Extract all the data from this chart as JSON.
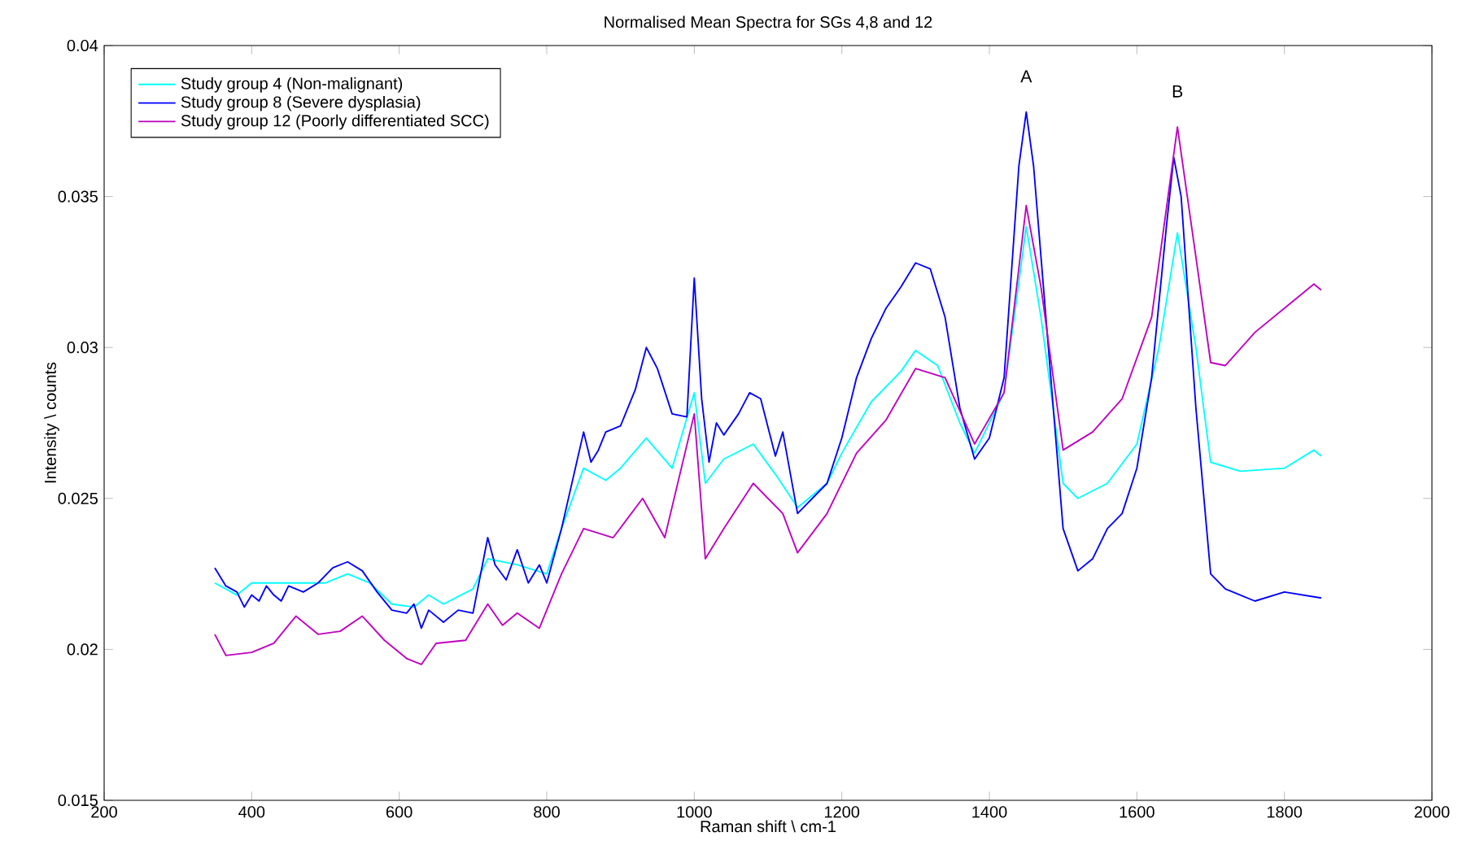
{
  "chart_data": {
    "type": "line",
    "title": "Normalised Mean Spectra for SGs 4,8 and 12",
    "xlabel": "Raman shift \\ cm-1",
    "ylabel": "Intensity \\ counts",
    "xlim": [
      200,
      2000
    ],
    "ylim": [
      0.015,
      0.04
    ],
    "xticks": [
      200,
      400,
      600,
      800,
      1000,
      1200,
      1400,
      1600,
      1800,
      2000
    ],
    "yticks": [
      0.015,
      0.02,
      0.025,
      0.03,
      0.035,
      0.04
    ],
    "legend": "top left",
    "annotations": [
      "A",
      "B"
    ],
    "series": [
      {
        "name": "Study group 4 (Non-malignant)",
        "color": "#00ffff",
        "x": [
          350,
          380,
          400,
          450,
          500,
          530,
          560,
          590,
          620,
          640,
          660,
          700,
          720,
          760,
          800,
          820,
          850,
          880,
          900,
          935,
          970,
          1000,
          1015,
          1040,
          1080,
          1110,
          1140,
          1180,
          1200,
          1240,
          1280,
          1300,
          1330,
          1360,
          1380,
          1420,
          1450,
          1470,
          1500,
          1520,
          1560,
          1600,
          1630,
          1655,
          1680,
          1700,
          1740,
          1800,
          1840,
          1850
        ],
        "values": [
          0.0222,
          0.0218,
          0.0222,
          0.0222,
          0.0222,
          0.0225,
          0.0222,
          0.0215,
          0.0214,
          0.0218,
          0.0215,
          0.022,
          0.023,
          0.0228,
          0.0225,
          0.024,
          0.026,
          0.0256,
          0.026,
          0.027,
          0.026,
          0.0285,
          0.0255,
          0.0263,
          0.0268,
          0.0258,
          0.0247,
          0.0255,
          0.0265,
          0.0282,
          0.0292,
          0.0299,
          0.0294,
          0.0275,
          0.0265,
          0.0285,
          0.034,
          0.031,
          0.0255,
          0.025,
          0.0255,
          0.0268,
          0.03,
          0.0338,
          0.03,
          0.0262,
          0.0259,
          0.026,
          0.0266,
          0.0264
        ]
      },
      {
        "name": "Study group 8 (Severe dysplasia)",
        "color": "#0000ff",
        "x": [
          350,
          365,
          380,
          390,
          400,
          410,
          420,
          430,
          440,
          450,
          470,
          490,
          510,
          530,
          550,
          570,
          590,
          610,
          620,
          630,
          640,
          660,
          680,
          700,
          720,
          730,
          745,
          760,
          775,
          790,
          800,
          820,
          850,
          860,
          870,
          880,
          900,
          920,
          935,
          950,
          970,
          990,
          1000,
          1010,
          1020,
          1030,
          1040,
          1060,
          1075,
          1090,
          1110,
          1120,
          1140,
          1160,
          1180,
          1200,
          1220,
          1240,
          1260,
          1280,
          1300,
          1320,
          1340,
          1360,
          1380,
          1400,
          1420,
          1440,
          1450,
          1460,
          1480,
          1500,
          1520,
          1540,
          1560,
          1580,
          1600,
          1620,
          1640,
          1650,
          1660,
          1680,
          1700,
          1720,
          1760,
          1800,
          1850
        ],
        "values": [
          0.0227,
          0.0221,
          0.0219,
          0.0214,
          0.0218,
          0.0216,
          0.0221,
          0.0218,
          0.0216,
          0.0221,
          0.0219,
          0.0222,
          0.0227,
          0.0229,
          0.0226,
          0.0219,
          0.0213,
          0.0212,
          0.0215,
          0.0207,
          0.0213,
          0.0209,
          0.0213,
          0.0212,
          0.0237,
          0.0228,
          0.0223,
          0.0233,
          0.0222,
          0.0228,
          0.0222,
          0.024,
          0.0272,
          0.0262,
          0.0266,
          0.0272,
          0.0274,
          0.0286,
          0.03,
          0.0293,
          0.0278,
          0.0277,
          0.0323,
          0.0283,
          0.0262,
          0.0275,
          0.0271,
          0.0278,
          0.0285,
          0.0283,
          0.0264,
          0.0272,
          0.0245,
          0.025,
          0.0255,
          0.027,
          0.029,
          0.0303,
          0.0313,
          0.032,
          0.0328,
          0.0326,
          0.031,
          0.028,
          0.0263,
          0.027,
          0.029,
          0.036,
          0.0378,
          0.036,
          0.03,
          0.024,
          0.0226,
          0.023,
          0.024,
          0.0245,
          0.026,
          0.029,
          0.034,
          0.0363,
          0.035,
          0.028,
          0.0225,
          0.022,
          0.0216,
          0.0219,
          0.0217
        ]
      },
      {
        "name": "Study group 12 (Poorly differentiated SCC)",
        "color": "#bf00bf",
        "x": [
          350,
          365,
          400,
          430,
          460,
          490,
          520,
          550,
          580,
          610,
          630,
          650,
          690,
          720,
          740,
          760,
          790,
          820,
          850,
          890,
          930,
          960,
          1000,
          1015,
          1040,
          1080,
          1120,
          1140,
          1180,
          1220,
          1260,
          1300,
          1340,
          1380,
          1420,
          1450,
          1470,
          1500,
          1540,
          1580,
          1620,
          1655,
          1680,
          1700,
          1720,
          1760,
          1800,
          1840,
          1850
        ],
        "values": [
          0.0205,
          0.0198,
          0.0199,
          0.0202,
          0.0211,
          0.0205,
          0.0206,
          0.0211,
          0.0203,
          0.0197,
          0.0195,
          0.0202,
          0.0203,
          0.0215,
          0.0208,
          0.0212,
          0.0207,
          0.0225,
          0.024,
          0.0237,
          0.025,
          0.0237,
          0.0278,
          0.023,
          0.024,
          0.0255,
          0.0245,
          0.0232,
          0.0245,
          0.0265,
          0.0276,
          0.0293,
          0.029,
          0.0268,
          0.0285,
          0.0347,
          0.032,
          0.0266,
          0.0272,
          0.0283,
          0.031,
          0.0373,
          0.033,
          0.0295,
          0.0294,
          0.0305,
          0.0313,
          0.0321,
          0.0319
        ]
      }
    ]
  }
}
